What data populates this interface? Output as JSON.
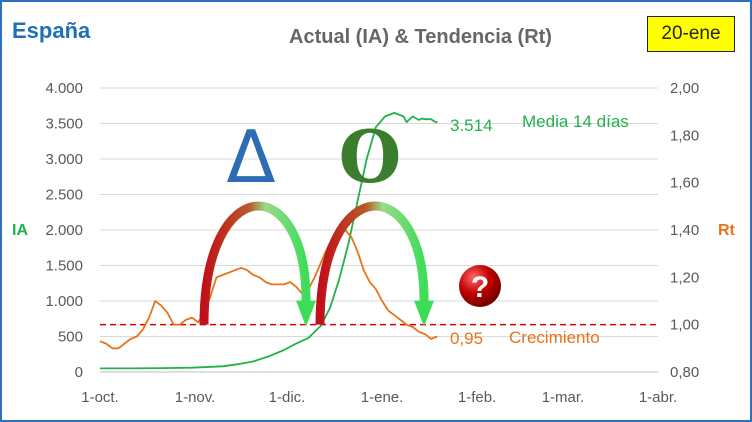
{
  "header": {
    "region": "España",
    "title": "Actual (IA) & Tendencia (Rt)",
    "date_badge": "20-ene"
  },
  "colors": {
    "ia_series": "#22b14c",
    "rt_series": "#e8731a",
    "threshold": "#e00000",
    "region_title": "#1f6fb5",
    "delta_symbol": "#2e6db4",
    "circle_symbol": "#3a7d2c",
    "question_badge": "#c00000",
    "frame": "#2f6fbf"
  },
  "annotations": {
    "ia_last_value": "3.514",
    "ia_series_label": "Media 14 días",
    "rt_last_value": "0,95",
    "threshold_label": "Crecimiento",
    "delta_symbol": "Δ",
    "circle_symbol": "O",
    "question_mark": "?"
  },
  "chart_data": {
    "type": "line",
    "x_ticks": [
      "1-oct.",
      "1-nov.",
      "1-dic.",
      "1-ene.",
      "1-feb.",
      "1-mar.",
      "1-abr."
    ],
    "x_tick_days": [
      0,
      31,
      61,
      92,
      123,
      151,
      182
    ],
    "xlim": [
      0,
      182
    ],
    "y_left": {
      "label": "IA",
      "ylim": [
        0,
        4000
      ],
      "ticks": [
        0,
        500,
        1000,
        1500,
        2000,
        2500,
        3000,
        3500,
        4000
      ],
      "tick_labels": [
        "0",
        "500",
        "1.000",
        "1.500",
        "2.000",
        "2.500",
        "3.000",
        "3.500",
        "4.000"
      ]
    },
    "y_right": {
      "label": "Rt",
      "ylim": [
        0.8,
        2.0
      ],
      "ticks": [
        0.8,
        1.0,
        1.2,
        1.4,
        1.6,
        1.8,
        2.0
      ],
      "tick_labels": [
        "0,80",
        "1,00",
        "1,20",
        "1,40",
        "1,60",
        "1,80",
        "2,00"
      ]
    },
    "threshold": {
      "axis": "right",
      "value": 1.0
    },
    "grid": "horizontal",
    "series": [
      {
        "name": "Media 14 días",
        "axis": "left",
        "x": [
          0,
          10,
          20,
          30,
          40,
          45,
          50,
          55,
          60,
          64,
          68,
          72,
          75,
          78,
          81,
          84,
          87,
          90,
          93,
          96,
          99,
          100,
          102,
          104,
          105,
          106,
          108,
          109,
          110
        ],
        "y": [
          50,
          50,
          55,
          60,
          80,
          110,
          150,
          220,
          310,
          400,
          480,
          650,
          900,
          1300,
          1800,
          2400,
          3000,
          3450,
          3600,
          3650,
          3600,
          3520,
          3600,
          3550,
          3570,
          3560,
          3560,
          3530,
          3514
        ]
      },
      {
        "name": "",
        "axis": "right",
        "x": [
          0,
          2,
          4,
          6,
          8,
          10,
          12,
          14,
          16,
          18,
          20,
          22,
          24,
          26,
          28,
          30,
          32,
          34,
          36,
          38,
          40,
          42,
          44,
          46,
          48,
          50,
          52,
          54,
          56,
          58,
          60,
          62,
          64,
          66,
          68,
          70,
          72,
          74,
          76,
          78,
          80,
          82,
          84,
          86,
          88,
          90,
          92,
          94,
          96,
          98,
          100,
          102,
          104,
          106,
          108,
          110
        ],
        "y": [
          0.93,
          0.92,
          0.9,
          0.9,
          0.92,
          0.94,
          0.95,
          0.98,
          1.03,
          1.1,
          1.08,
          1.05,
          1.0,
          1.0,
          1.02,
          1.03,
          1.01,
          1.05,
          1.12,
          1.2,
          1.21,
          1.22,
          1.23,
          1.24,
          1.23,
          1.21,
          1.2,
          1.18,
          1.17,
          1.17,
          1.17,
          1.18,
          1.16,
          1.13,
          1.15,
          1.2,
          1.26,
          1.32,
          1.37,
          1.4,
          1.4,
          1.37,
          1.31,
          1.23,
          1.18,
          1.15,
          1.1,
          1.06,
          1.04,
          1.02,
          1.0,
          0.99,
          0.97,
          0.96,
          0.94,
          0.95
        ]
      }
    ]
  }
}
